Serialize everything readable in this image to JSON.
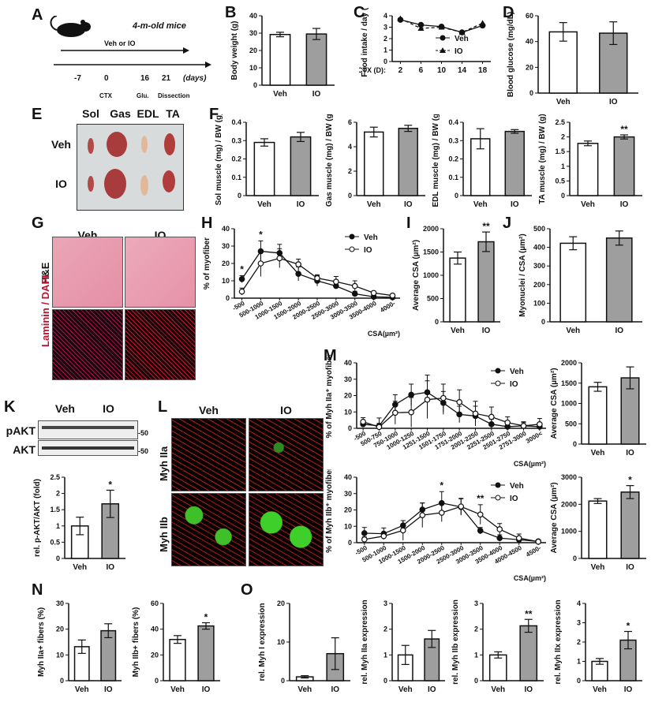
{
  "panels": {
    "A": {
      "label": "A",
      "title": "4-m-old mice",
      "treatment": "Veh or IO",
      "timeline": [
        "-7",
        "0",
        "16",
        "21"
      ],
      "unit": "(days)",
      "events": [
        "CTX",
        "Glu.",
        "Dissection"
      ]
    },
    "E": {
      "label": "E",
      "cols": [
        "Sol",
        "Gas",
        "EDL",
        "TA"
      ],
      "rows": [
        "Veh",
        "IO"
      ]
    },
    "G": {
      "label": "G",
      "cols": [
        "Veh",
        "IO"
      ],
      "rows": [
        "H&E",
        "Laminin / DAPI"
      ]
    },
    "K": {
      "label": "K",
      "groups": [
        "Veh",
        "IO"
      ],
      "blots": [
        "pAKT",
        "AKT"
      ],
      "mw": [
        "-50",
        "-50"
      ]
    },
    "L": {
      "label": "L",
      "cols": [
        "Veh",
        "IO"
      ],
      "rows": [
        "Myh IIa",
        "Myh IIb"
      ]
    },
    "misc_labels": {
      "B": "B",
      "C": "C",
      "D": "D",
      "F": "F",
      "H": "H",
      "I": "I",
      "J": "J",
      "M": "M",
      "N": "N",
      "O": "O"
    }
  },
  "chart_data": [
    {
      "id": "B",
      "type": "bar",
      "categories": [
        "Veh",
        "IO"
      ],
      "values": [
        29.2,
        29.5
      ],
      "errors": [
        1.3,
        3.2
      ],
      "ylabel": "Body weight (g)",
      "ylim": [
        0,
        40
      ],
      "yticks": [
        0,
        10,
        20,
        30,
        40
      ],
      "colors": [
        "#ffffff",
        "#9e9e9e"
      ]
    },
    {
      "id": "C",
      "type": "line",
      "x": [
        "2",
        "6",
        "10",
        "14",
        "18"
      ],
      "xlabel": "CTX (D):",
      "ylabel": "Food intake / day (g)",
      "ylim": [
        0,
        4
      ],
      "yticks": [
        0,
        1,
        2,
        3,
        4
      ],
      "series": [
        {
          "name": "Veh",
          "values": [
            3.65,
            3.2,
            3.05,
            2.55,
            3.15
          ],
          "marker": "circle",
          "line": "solid"
        },
        {
          "name": "IO",
          "values": [
            3.75,
            2.9,
            3.0,
            2.55,
            3.35
          ],
          "marker": "triangle",
          "line": "dashed"
        }
      ]
    },
    {
      "id": "D",
      "type": "bar",
      "categories": [
        "Veh",
        "IO"
      ],
      "values": [
        47.5,
        46.5
      ],
      "errors": [
        7.2,
        8.8
      ],
      "ylabel": "Blood glucose (mg/dL)",
      "ylim": [
        0,
        60
      ],
      "yticks": [
        0,
        20,
        40,
        60
      ],
      "colors": [
        "#ffffff",
        "#9e9e9e"
      ]
    },
    {
      "id": "F1",
      "type": "bar",
      "categories": [
        "Veh",
        "IO"
      ],
      "values": [
        0.29,
        0.32
      ],
      "errors": [
        0.02,
        0.025
      ],
      "ylabel": "Sol muscle (mg) / BW (g)",
      "ylim": [
        0,
        0.4
      ],
      "yticks": [
        0.0,
        0.1,
        0.2,
        0.3,
        0.4
      ],
      "colors": [
        "#ffffff",
        "#9e9e9e"
      ]
    },
    {
      "id": "F2",
      "type": "bar",
      "categories": [
        "Veh",
        "IO"
      ],
      "values": [
        5.2,
        5.5
      ],
      "errors": [
        0.4,
        0.25
      ],
      "ylabel": "Gas muscle (mg) / BW (g)",
      "ylim": [
        0,
        6
      ],
      "yticks": [
        0,
        2,
        4,
        6
      ],
      "colors": [
        "#ffffff",
        "#9e9e9e"
      ]
    },
    {
      "id": "F3",
      "type": "bar",
      "categories": [
        "Veh",
        "IO"
      ],
      "values": [
        0.31,
        0.35
      ],
      "errors": [
        0.055,
        0.01
      ],
      "ylabel": "EDL muscle (mg) / BW (g)",
      "ylim": [
        0,
        0.4
      ],
      "yticks": [
        0.0,
        0.1,
        0.2,
        0.3,
        0.4
      ],
      "colors": [
        "#ffffff",
        "#9e9e9e"
      ]
    },
    {
      "id": "F4",
      "type": "bar",
      "categories": [
        "Veh",
        "IO"
      ],
      "values": [
        1.78,
        2.0
      ],
      "errors": [
        0.08,
        0.07
      ],
      "ylabel": "TA muscle (mg) / BW (g)",
      "ylim": [
        0,
        2.5
      ],
      "yticks": [
        0.0,
        0.5,
        1.0,
        1.5,
        2.0,
        2.5
      ],
      "annotations": [
        "",
        "**"
      ],
      "colors": [
        "#ffffff",
        "#9e9e9e"
      ]
    },
    {
      "id": "H",
      "type": "line",
      "x": [
        "-500",
        "500-1000",
        "1000-1500",
        "1500-2000",
        "2000-2500",
        "2500-3000",
        "3000-3500",
        "3500-4000",
        "4000-"
      ],
      "xlabel": "CSA(µm²)",
      "ylabel": "% of myofiber",
      "ylim": [
        0,
        40
      ],
      "yticks": [
        0,
        10,
        20,
        30,
        40
      ],
      "series": [
        {
          "name": "Veh",
          "values": [
            11,
            27,
            26,
            14,
            10,
            7,
            2.5,
            0.8,
            0.5
          ],
          "errors": [
            2,
            6,
            5,
            4,
            3,
            1.5,
            1.5,
            0.5,
            0.5
          ],
          "marker": "filled-circle"
        },
        {
          "name": "IO",
          "values": [
            3.8,
            20,
            23,
            19.5,
            11.5,
            9.5,
            7,
            3,
            1.5
          ],
          "errors": [
            2,
            7.5,
            5.5,
            3,
            2,
            3,
            3,
            1,
            0.5
          ],
          "marker": "open-circle"
        }
      ],
      "annotations": [
        {
          "x": "-500",
          "text": "*"
        },
        {
          "x": "500-1000",
          "text": "*"
        }
      ]
    },
    {
      "id": "I",
      "type": "bar",
      "categories": [
        "Veh",
        "IO"
      ],
      "values": [
        1370,
        1720
      ],
      "errors": [
        130,
        210
      ],
      "ylabel": "Average CSA (µm²)",
      "ylim": [
        0,
        2000
      ],
      "yticks": [
        0,
        500,
        1000,
        1500,
        2000
      ],
      "annotations": [
        "",
        "**"
      ],
      "colors": [
        "#ffffff",
        "#9e9e9e"
      ]
    },
    {
      "id": "J",
      "type": "bar",
      "categories": [
        "Veh",
        "IO"
      ],
      "values": [
        422,
        450
      ],
      "errors": [
        35,
        38
      ],
      "ylabel": "Myonuclei / CSA (µm²)",
      "ylim": [
        0,
        500
      ],
      "yticks": [
        0,
        100,
        200,
        300,
        400,
        500
      ],
      "colors": [
        "#ffffff",
        "#9e9e9e"
      ]
    },
    {
      "id": "K2",
      "type": "bar",
      "categories": [
        "Veh",
        "IO"
      ],
      "values": [
        1.0,
        1.68
      ],
      "errors": [
        0.27,
        0.42
      ],
      "ylabel": "rel. p-AKT/AKT (fold)",
      "ylim": [
        0,
        2.5
      ],
      "yticks": [
        0.0,
        0.5,
        1.0,
        1.5,
        2.0,
        2.5
      ],
      "annotations": [
        "",
        "*"
      ],
      "colors": [
        "#ffffff",
        "#9e9e9e"
      ]
    },
    {
      "id": "M1",
      "type": "line",
      "x": [
        "-500",
        "500-750",
        "750-1000",
        "1000-1250",
        "1251-1500",
        "1501-1750",
        "1751-2000",
        "2001-2250",
        "2251-2500",
        "2501-2750",
        "2751-3000",
        "3000<"
      ],
      "xlabel": "CSA(µm²)",
      "ylabel": "% of Myh IIa⁺ myofiber",
      "ylim": [
        0,
        40
      ],
      "yticks": [
        0,
        10,
        20,
        30,
        40
      ],
      "series": [
        {
          "name": "Veh",
          "values": [
            2.5,
            1.5,
            14.5,
            20.5,
            22,
            15.5,
            8.5,
            7.5,
            2.5,
            1,
            1.5,
            1
          ],
          "errors": [
            1.5,
            1.5,
            6,
            6.5,
            10.5,
            7,
            5,
            6,
            3,
            1,
            2,
            1
          ],
          "marker": "filled-circle"
        },
        {
          "name": "IO",
          "values": [
            4,
            0.8,
            9.5,
            9.8,
            17.5,
            18.5,
            16,
            9,
            7,
            3.5,
            1.5,
            2.5
          ],
          "errors": [
            2.5,
            5.5,
            7,
            9,
            11.5,
            8.5,
            7.5,
            7.5,
            6,
            3.5,
            2.5,
            3.5
          ],
          "marker": "open-circle"
        }
      ]
    },
    {
      "id": "M2",
      "type": "bar",
      "categories": [
        "Veh",
        "IO"
      ],
      "values": [
        1410,
        1630
      ],
      "errors": [
        110,
        270
      ],
      "ylabel": "Average CSA (µm²)",
      "ylim": [
        0,
        2000
      ],
      "yticks": [
        0,
        500,
        1000,
        1500,
        2000
      ],
      "colors": [
        "#ffffff",
        "#9e9e9e"
      ]
    },
    {
      "id": "M3",
      "type": "line",
      "x": [
        "-500",
        "500-1000",
        "1000-1500",
        "1500-2000",
        "2000-2500",
        "2500-3000",
        "3000-3500",
        "3500-4000",
        "4000-4500",
        "4500-"
      ],
      "xlabel": "CSA(µm²)",
      "ylabel": "% of Myh IIb⁺ myofiber",
      "ylim": [
        0,
        40
      ],
      "yticks": [
        0,
        10,
        20,
        30,
        40
      ],
      "series": [
        {
          "name": "Veh",
          "values": [
            5.8,
            5.5,
            10.5,
            20.2,
            24.2,
            21.8,
            7.3,
            2.8,
            1.8,
            0.8
          ],
          "errors": [
            3.5,
            3.5,
            3,
            4,
            7,
            5,
            2,
            2,
            1.5,
            1
          ],
          "marker": "filled-circle"
        },
        {
          "name": "IO",
          "values": [
            2,
            4,
            7.5,
            16.8,
            18.3,
            22.1,
            17.2,
            8.2,
            2.8,
            0.6
          ],
          "errors": [
            1.5,
            2,
            6,
            7.5,
            5.5,
            5,
            6,
            3.5,
            2.5,
            0.8
          ],
          "marker": "open-circle"
        }
      ],
      "annotations": [
        {
          "x": "2000-2500",
          "text": "*"
        },
        {
          "x": "3000-3500",
          "text": "**"
        }
      ]
    },
    {
      "id": "M4",
      "type": "bar",
      "categories": [
        "Veh",
        "IO"
      ],
      "values": [
        2120,
        2450
      ],
      "errors": [
        90,
        240
      ],
      "ylabel": "Average CSA (µm²)",
      "ylim": [
        0,
        3000
      ],
      "yticks": [
        0,
        1000,
        2000,
        3000
      ],
      "annotations": [
        "",
        "*"
      ],
      "colors": [
        "#ffffff",
        "#9e9e9e"
      ]
    },
    {
      "id": "N1",
      "type": "bar",
      "categories": [
        "Veh",
        "IO"
      ],
      "values": [
        13.2,
        19.4
      ],
      "errors": [
        2.6,
        2.7
      ],
      "ylabel": "Myh IIa+ fibers (%)",
      "ylim": [
        0,
        30
      ],
      "yticks": [
        0,
        10,
        20,
        30
      ],
      "colors": [
        "#ffffff",
        "#9e9e9e"
      ]
    },
    {
      "id": "N2",
      "type": "bar",
      "categories": [
        "Veh",
        "IO"
      ],
      "values": [
        32,
        42.5
      ],
      "errors": [
        3,
        2.5
      ],
      "ylabel": "Myh IIb+ fibers (%)",
      "ylim": [
        0,
        60
      ],
      "yticks": [
        0,
        20,
        40,
        60
      ],
      "annotations": [
        "",
        "*"
      ],
      "colors": [
        "#ffffff",
        "#9e9e9e"
      ]
    },
    {
      "id": "O1",
      "type": "bar",
      "categories": [
        "Veh",
        "IO"
      ],
      "values": [
        1.0,
        7.0
      ],
      "errors": [
        0.3,
        4.1
      ],
      "ylabel": "rel. Myh I expression",
      "ylim": [
        0,
        20
      ],
      "yticks": [
        0,
        10,
        20
      ],
      "colors": [
        "#ffffff",
        "#9e9e9e"
      ]
    },
    {
      "id": "O2",
      "type": "bar",
      "categories": [
        "Veh",
        "IO"
      ],
      "values": [
        1.0,
        1.62
      ],
      "errors": [
        0.37,
        0.33
      ],
      "ylabel": "rel. Myh IIa expression",
      "ylim": [
        0,
        3
      ],
      "yticks": [
        0,
        1,
        2,
        3
      ],
      "colors": [
        "#ffffff",
        "#9e9e9e"
      ]
    },
    {
      "id": "O3",
      "type": "bar",
      "categories": [
        "Veh",
        "IO"
      ],
      "values": [
        1.0,
        2.13
      ],
      "errors": [
        0.12,
        0.25
      ],
      "ylabel": "rel. Myh IIb expression",
      "ylim": [
        0,
        3
      ],
      "yticks": [
        0,
        1,
        2,
        3
      ],
      "annotations": [
        "",
        "**"
      ],
      "colors": [
        "#ffffff",
        "#9e9e9e"
      ]
    },
    {
      "id": "O4",
      "type": "bar",
      "categories": [
        "Veh",
        "IO"
      ],
      "values": [
        1.0,
        2.1
      ],
      "errors": [
        0.15,
        0.45
      ],
      "ylabel": "rel. Myh IIx expression",
      "ylim": [
        0,
        4
      ],
      "yticks": [
        0,
        1,
        2,
        3,
        4
      ],
      "annotations": [
        "",
        "*"
      ],
      "colors": [
        "#ffffff",
        "#9e9e9e"
      ]
    }
  ]
}
